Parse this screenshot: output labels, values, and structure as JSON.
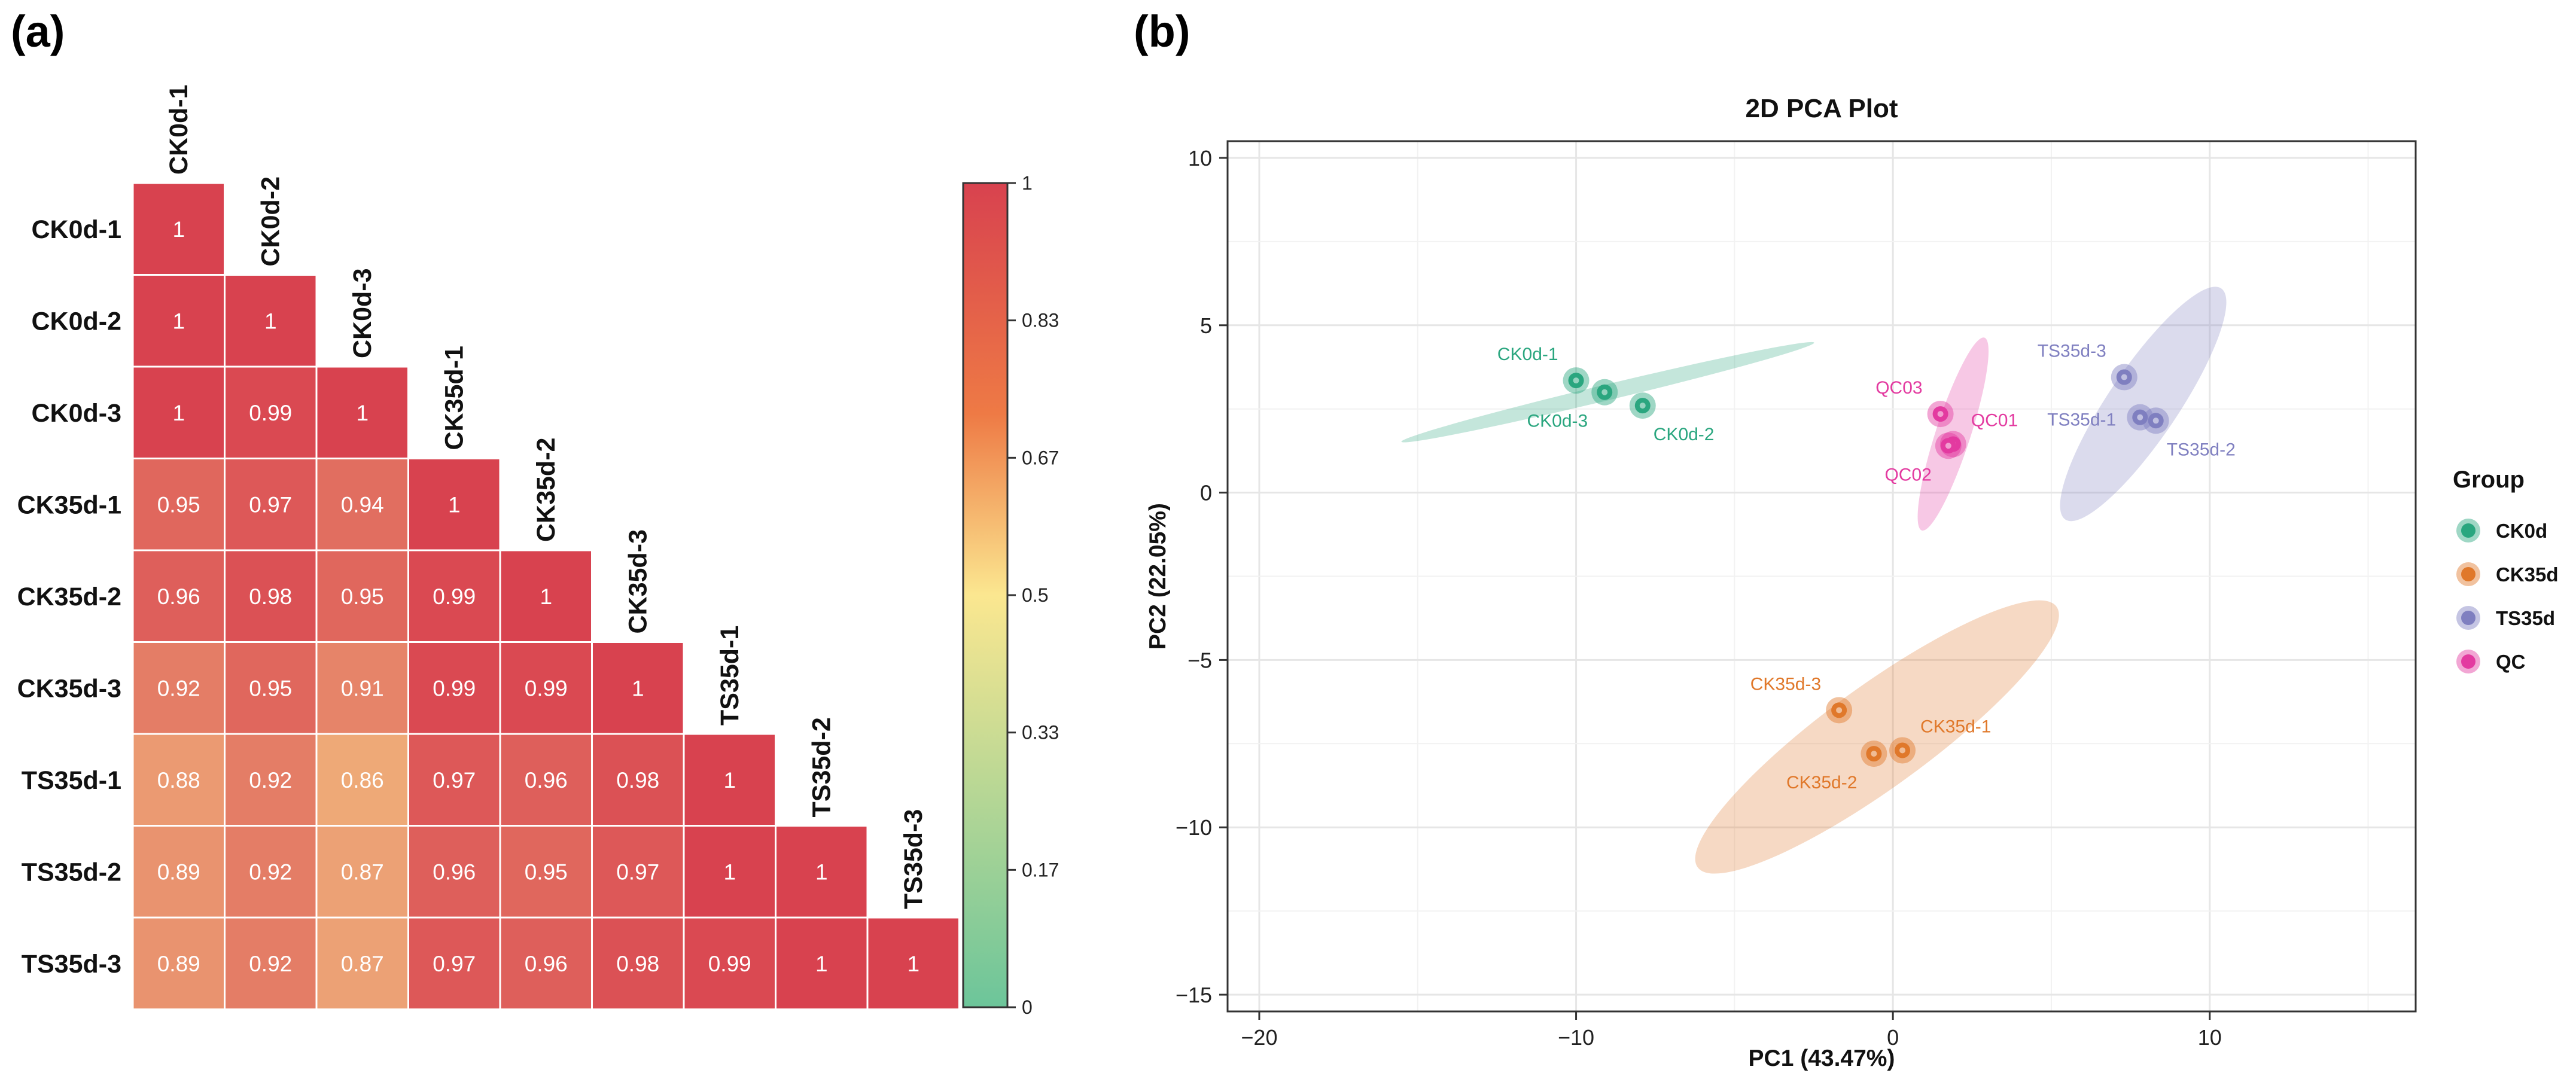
{
  "figure": {
    "panel_a_label": "(a)",
    "panel_b_label": "(b)"
  },
  "chart_data": [
    {
      "type": "heatmap",
      "title": "",
      "samples": [
        "CK0d-1",
        "CK0d-2",
        "CK0d-3",
        "CK35d-1",
        "CK35d-2",
        "CK35d-3",
        "TS35d-1",
        "TS35d-2",
        "TS35d-3"
      ],
      "triangle": "lower",
      "matrix": [
        [
          1
        ],
        [
          1,
          1
        ],
        [
          1,
          0.99,
          1
        ],
        [
          0.95,
          0.97,
          0.94,
          1
        ],
        [
          0.96,
          0.98,
          0.95,
          0.99,
          1
        ],
        [
          0.92,
          0.95,
          0.91,
          0.99,
          0.99,
          1
        ],
        [
          0.88,
          0.92,
          0.86,
          0.97,
          0.96,
          0.98,
          1
        ],
        [
          0.89,
          0.92,
          0.87,
          0.96,
          0.95,
          0.97,
          1,
          1
        ],
        [
          0.89,
          0.92,
          0.87,
          0.97,
          0.96,
          0.98,
          0.99,
          1,
          1
        ]
      ],
      "colorbar": {
        "ticks": [
          "1",
          "0.83",
          "0.67",
          "0.5",
          "0.33",
          "0.17",
          "0"
        ],
        "colors": {
          "low": "#6cc59a",
          "mid": "#fbe790",
          "high": "#d8424f"
        }
      }
    },
    {
      "type": "scatter",
      "title": "2D PCA Plot",
      "xlabel": "PC1 (43.47%)",
      "ylabel": "PC2 (22.05%)",
      "xlim": [
        -21,
        16.5
      ],
      "ylim": [
        -15.5,
        10.5
      ],
      "xticks": [
        -20,
        -10,
        0,
        10
      ],
      "xtick_labels": [
        "−20",
        "−10",
        "0",
        "10"
      ],
      "yticks": [
        10,
        5,
        0,
        -5,
        -10,
        -15
      ],
      "ytick_labels": [
        "10",
        "5",
        "0",
        "−5",
        "−10",
        "−15"
      ],
      "grid": true,
      "legend": {
        "title": "Group",
        "placement": "right",
        "entries": [
          {
            "name": "CK0d",
            "color": "#2aa67f"
          },
          {
            "name": "CK35d",
            "color": "#e0782a"
          },
          {
            "name": "TS35d",
            "color": "#7f7fc0"
          },
          {
            "name": "QC",
            "color": "#e33aa0"
          }
        ]
      },
      "series": [
        {
          "name": "CK0d",
          "color": "#2aa67f",
          "ellipse": {
            "cx": -9,
            "cy": 3,
            "a": 6.7,
            "b": 0.25,
            "angle_deg": -13.5
          },
          "points": [
            {
              "label": "CK0d-1",
              "x": -10.0,
              "y": 3.35,
              "label_pos": "above-left"
            },
            {
              "label": "CK0d-3",
              "x": -9.1,
              "y": 3.0,
              "label_pos": "below-left"
            },
            {
              "label": "CK0d-2",
              "x": -7.9,
              "y": 2.6,
              "label_pos": "below-right"
            }
          ]
        },
        {
          "name": "CK35d",
          "color": "#e0782a",
          "ellipse": {
            "cx": -0.5,
            "cy": -7.3,
            "a": 7.0,
            "b": 1.6,
            "angle_deg": -36
          },
          "points": [
            {
              "label": "CK35d-3",
              "x": -1.7,
              "y": -6.5,
              "label_pos": "above-left"
            },
            {
              "label": "CK35d-1",
              "x": 0.3,
              "y": -7.7,
              "label_pos": "above-right"
            },
            {
              "label": "CK35d-2",
              "x": -0.6,
              "y": -7.8,
              "label_pos": "below-left"
            }
          ]
        },
        {
          "name": "TS35d",
          "color": "#7f7fc0",
          "ellipse": {
            "cx": 7.9,
            "cy": 2.65,
            "a": 4.4,
            "b": 1.1,
            "angle_deg": -56
          },
          "points": [
            {
              "label": "TS35d-3",
              "x": 7.3,
              "y": 3.45,
              "label_pos": "above-left"
            },
            {
              "label": "TS35d-1",
              "x": 7.8,
              "y": 2.25,
              "label_pos": "left"
            },
            {
              "label": "TS35d-2",
              "x": 8.3,
              "y": 2.15,
              "label_pos": "below-right"
            }
          ]
        },
        {
          "name": "QC",
          "color": "#e33aa0",
          "ellipse": {
            "cx": 1.9,
            "cy": 1.75,
            "a": 3.2,
            "b": 0.55,
            "angle_deg": -72
          },
          "points": [
            {
              "label": "QC03",
              "x": 1.5,
              "y": 2.35,
              "label_pos": "above-left"
            },
            {
              "label": "QC01",
              "x": 1.9,
              "y": 1.45,
              "label_pos": "above-right"
            },
            {
              "label": "QC02",
              "x": 1.75,
              "y": 1.4,
              "label_pos": "below-left"
            }
          ]
        }
      ]
    }
  ]
}
